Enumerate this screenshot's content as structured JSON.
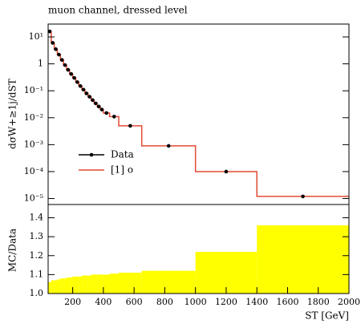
{
  "chart_data": [
    {
      "type": "histogram",
      "title": "muon channel, dressed level",
      "ylabel": "dσW+≥1j/dST",
      "bins": [
        40,
        60,
        80,
        100,
        120,
        140,
        160,
        180,
        200,
        220,
        240,
        260,
        280,
        300,
        320,
        340,
        360,
        380,
        400,
        440,
        500,
        650,
        1000,
        1400,
        2000
      ],
      "series": [
        {
          "name": "Data",
          "color": "#000000",
          "values": [
            16,
            6,
            3.5,
            2.2,
            1.4,
            0.9,
            0.6,
            0.42,
            0.3,
            0.21,
            0.15,
            0.11,
            0.08,
            0.06,
            0.045,
            0.034,
            0.026,
            0.02,
            0.015,
            0.011,
            0.005,
            0.0009,
            0.0001,
            1.2e-05
          ]
        },
        {
          "name": "[1] o",
          "color": "#e34a33",
          "values": [
            16,
            6,
            3.5,
            2.2,
            1.4,
            0.9,
            0.6,
            0.42,
            0.3,
            0.21,
            0.15,
            0.11,
            0.08,
            0.06,
            0.045,
            0.034,
            0.026,
            0.02,
            0.015,
            0.011,
            0.005,
            0.0009,
            0.0001,
            1.2e-05
          ]
        }
      ],
      "xlim": [
        40,
        2000
      ],
      "ylim": [
        6e-06,
        30
      ],
      "log_y": true,
      "yticks": [
        {
          "value": 10,
          "label": "10¹"
        },
        1,
        {
          "value": 0.1,
          "label": "10⁻¹"
        },
        {
          "value": 0.01,
          "label": "10⁻²"
        },
        {
          "value": 0.001,
          "label": "10⁻³"
        },
        {
          "value": 0.0001,
          "label": "10⁻⁴"
        },
        {
          "value": 1e-05,
          "label": "10⁻⁵"
        }
      ],
      "legend": "lower left"
    },
    {
      "type": "histogram",
      "ylabel": "MC/Data",
      "xlabel": "ST [GeV]",
      "bins": [
        40,
        60,
        80,
        100,
        120,
        140,
        160,
        180,
        200,
        220,
        240,
        260,
        280,
        300,
        320,
        340,
        360,
        380,
        400,
        440,
        500,
        650,
        1000,
        1400,
        2000
      ],
      "values": [
        1.06,
        1.07,
        1.07,
        1.075,
        1.08,
        1.08,
        1.085,
        1.085,
        1.09,
        1.09,
        1.09,
        1.095,
        1.095,
        1.095,
        1.1,
        1.1,
        1.1,
        1.1,
        1.1,
        1.105,
        1.11,
        1.12,
        1.22,
        1.36
      ],
      "color": "#ffff00",
      "xlim": [
        40,
        2000
      ],
      "ylim": [
        1.0,
        1.47
      ],
      "xticks": [
        200,
        400,
        600,
        800,
        1000,
        1200,
        1400,
        1600,
        1800,
        2000
      ],
      "yticks": [
        {
          "value": 1.0,
          "label": "1.0"
        },
        1.1,
        1.2,
        1.3,
        1.4
      ]
    }
  ]
}
